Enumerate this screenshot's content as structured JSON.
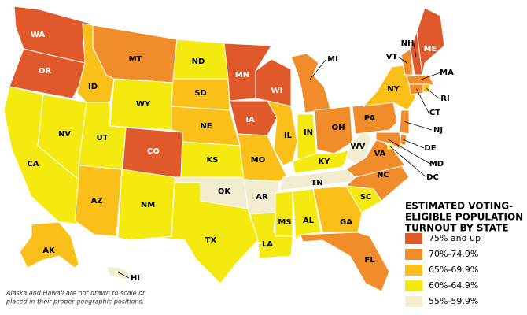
{
  "states": [
    {
      "label": "WA",
      "color": "#e0592b"
    },
    {
      "label": "OR",
      "color": "#e0592b"
    },
    {
      "label": "CA",
      "color": "#f5ea10"
    },
    {
      "label": "NV",
      "color": "#f5ea10"
    },
    {
      "label": "ID",
      "color": "#fbbf1a"
    },
    {
      "label": "MT",
      "color": "#f08c2a"
    },
    {
      "label": "WY",
      "color": "#f5ea10"
    },
    {
      "label": "UT",
      "color": "#f5ea10"
    },
    {
      "label": "CO",
      "color": "#e0592b"
    },
    {
      "label": "AZ",
      "color": "#fbbf1a"
    },
    {
      "label": "NM",
      "color": "#f5ea10"
    },
    {
      "label": "ND",
      "color": "#f5ea10"
    },
    {
      "label": "SD",
      "color": "#fbbf1a"
    },
    {
      "label": "NE",
      "color": "#fbbf1a"
    },
    {
      "label": "KS",
      "color": "#f5ea10"
    },
    {
      "label": "OK",
      "color": "#f2ecd0"
    },
    {
      "label": "TX",
      "color": "#f5ea10"
    },
    {
      "label": "MN",
      "color": "#e0592b"
    },
    {
      "label": "IA",
      "color": "#e0592b"
    },
    {
      "label": "MO",
      "color": "#fbbf1a"
    },
    {
      "label": "AR",
      "color": "#f2ecd0"
    },
    {
      "label": "LA",
      "color": "#f5ea10"
    },
    {
      "label": "WI",
      "color": "#e0592b"
    },
    {
      "label": "IL",
      "color": "#fbbf1a"
    },
    {
      "label": "MI",
      "color": "#f08c2a"
    },
    {
      "label": "IN",
      "color": "#f5ea10"
    },
    {
      "label": "OH",
      "color": "#f08c2a"
    },
    {
      "label": "KY",
      "color": "#f5ea10"
    },
    {
      "label": "TN",
      "color": "#f2ecd0"
    },
    {
      "label": "MS",
      "color": "#f5ea10"
    },
    {
      "label": "AL",
      "color": "#f5ea10"
    },
    {
      "label": "GA",
      "color": "#fbbf1a"
    },
    {
      "label": "FL",
      "color": "#f08c2a"
    },
    {
      "label": "SC",
      "color": "#f5ea10"
    },
    {
      "label": "NC",
      "color": "#f08c2a"
    },
    {
      "label": "VA",
      "color": "#f08c2a"
    },
    {
      "label": "WV",
      "color": "#f2ecd0"
    },
    {
      "label": "PA",
      "color": "#f08c2a"
    },
    {
      "label": "NY",
      "color": "#fbbf1a"
    },
    {
      "label": "VT",
      "color": "#f08c2a"
    },
    {
      "label": "NH",
      "color": "#e0592b"
    },
    {
      "label": "ME",
      "color": "#e0592b"
    },
    {
      "label": "MA",
      "color": "#f08c2a"
    },
    {
      "label": "RI",
      "color": "#fbbf1a"
    },
    {
      "label": "CT",
      "color": "#f08c2a"
    },
    {
      "label": "NJ",
      "color": "#f08c2a"
    },
    {
      "label": "DE",
      "color": "#f08c2a"
    },
    {
      "label": "MD",
      "color": "#f08c2a"
    },
    {
      "label": "DC",
      "color": "#f5ea10"
    },
    {
      "label": "AK",
      "color": "#fbbf1a"
    },
    {
      "label": "HI",
      "color": "#f2ecd0"
    }
  ],
  "legend": {
    "title_lines": [
      "ESTIMATED VOTING-",
      "ELIGIBLE POPULATION",
      "TURNOUT BY STATE"
    ],
    "items": [
      {
        "label": "75% and up",
        "color": "#e0592b"
      },
      {
        "label": "70%-74.9%",
        "color": "#f08c2a"
      },
      {
        "label": "65%-69.9%",
        "color": "#fbbf1a"
      },
      {
        "label": "60%-64.9%",
        "color": "#f5ea10"
      },
      {
        "label": "55%-59.9%",
        "color": "#f2ecd0"
      }
    ]
  },
  "footnote": [
    "Alaska and Hawaii are not drawn to scale or",
    "placed in their proper geographic positions."
  ]
}
